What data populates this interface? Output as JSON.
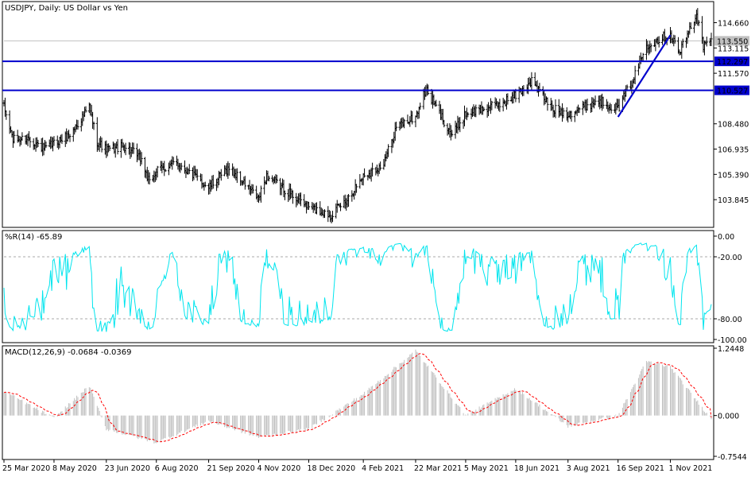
{
  "main_panel": {
    "symbol_title": "USDJPY, Daily:  US Dollar vs Yen",
    "price_ticks": [
      "114.660",
      "113.115",
      "111.570",
      "108.480",
      "106.935",
      "105.390",
      "103.845"
    ],
    "current_price_tag": "113.550",
    "hline_tags": [
      "112.297",
      "110.527"
    ]
  },
  "wpr_panel": {
    "title": "%R(14) -65.89",
    "ticks": [
      "0.00",
      "-20.00",
      "-80.00",
      "-100.00"
    ]
  },
  "macd_panel": {
    "title": "MACD(12,26,9) -0.0684 -0.0369",
    "ticks": [
      "1.2448",
      "0.000",
      "-0.7544"
    ]
  },
  "time_axis": {
    "labels": [
      "25 Mar 2020",
      "8 May 2020",
      "23 Jun 2020",
      "6 Aug 2020",
      "21 Sep 2020",
      "4 Nov 2020",
      "18 Dec 2020",
      "4 Feb 2021",
      "22 Mar 2021",
      "5 May 2021",
      "18 Jun 2021",
      "3 Aug 2021",
      "16 Sep 2021",
      "1 Nov 2021"
    ]
  },
  "colors": {
    "bars": "#000000",
    "hlines": "#0000CD",
    "trendline": "#0000CD",
    "wpr_line": "#00E5EE",
    "macd_hist": "#C0C0C0",
    "macd_signal": "#FF0000",
    "grid_dash": "#A9A9A9",
    "price_tag_bg": "#0000CD",
    "current_tag_bg": "#C0C0C0"
  },
  "chart_data": [
    {
      "type": "line",
      "name": "USDJPY Daily OHLC bars",
      "x_labels": [
        "25 Mar 2020",
        "8 May 2020",
        "23 Jun 2020",
        "6 Aug 2020",
        "21 Sep 2020",
        "4 Nov 2020",
        "18 Dec 2020",
        "4 Feb 2021",
        "22 Mar 2021",
        "5 May 2021",
        "18 Jun 2021",
        "3 Aug 2021",
        "16 Sep 2021",
        "1 Nov 2021"
      ],
      "close_keypoints": [
        [
          "25 Mar 2020",
          109.5
        ],
        [
          "2 Apr 2020",
          107.5
        ],
        [
          "16 Apr 2020",
          107.6
        ],
        [
          "30 Apr 2020",
          106.9
        ],
        [
          "8 May 2020",
          107.3
        ],
        [
          "22 May 2020",
          107.8
        ],
        [
          "8 Jun 2020",
          109.5
        ],
        [
          "15 Jun 2020",
          107.4
        ],
        [
          "23 Jun 2020",
          106.9
        ],
        [
          "10 Jul 2020",
          107.1
        ],
        [
          "24 Jul 2020",
          106.3
        ],
        [
          "31 Jul 2020",
          104.8
        ],
        [
          "6 Aug 2020",
          105.6
        ],
        [
          "24 Aug 2020",
          106.1
        ],
        [
          "21 Sep 2020",
          104.6
        ],
        [
          "9 Oct 2020",
          105.8
        ],
        [
          "4 Nov 2020",
          103.9
        ],
        [
          "11 Nov 2020",
          105.3
        ],
        [
          "18 Dec 2020",
          103.4
        ],
        [
          "6 Jan 2021",
          102.9
        ],
        [
          "20 Jan 2021",
          103.8
        ],
        [
          "4 Feb 2021",
          105.3
        ],
        [
          "22 Feb 2021",
          106.0
        ],
        [
          "5 Mar 2021",
          108.3
        ],
        [
          "22 Mar 2021",
          108.9
        ],
        [
          "31 Mar 2021",
          110.6
        ],
        [
          "23 Apr 2021",
          107.8
        ],
        [
          "5 May 2021",
          109.1
        ],
        [
          "1 Jun 2021",
          109.6
        ],
        [
          "18 Jun 2021",
          110.2
        ],
        [
          "2 Jul 2021",
          111.1
        ],
        [
          "20 Jul 2021",
          109.4
        ],
        [
          "3 Aug 2021",
          109.1
        ],
        [
          "30 Aug 2021",
          109.9
        ],
        [
          "16 Sep 2021",
          109.4
        ],
        [
          "30 Sep 2021",
          111.3
        ],
        [
          "11 Oct 2021",
          113.3
        ],
        [
          "1 Nov 2021",
          114.0
        ],
        [
          "9 Nov 2021",
          112.8
        ],
        [
          "24 Nov 2021",
          115.2
        ],
        [
          "30 Nov 2021",
          113.2
        ],
        [
          "7 Dec 2021",
          113.55
        ]
      ],
      "y_ticks": [
        103.845,
        105.39,
        106.935,
        108.48,
        111.57,
        113.115,
        114.66
      ],
      "ylim": [
        102.2,
        115.9
      ],
      "current_price": 113.55,
      "horizontal_lines": [
        112.297,
        110.527
      ],
      "trendline": {
        "from": [
          "16 Sep 2021",
          108.9
        ],
        "to": [
          "1 Nov 2021",
          113.9
        ]
      }
    },
    {
      "type": "line",
      "name": "%R(14)",
      "current_value": -65.89,
      "ylim": [
        -100,
        0
      ],
      "levels": [
        -20,
        -80
      ],
      "y_ticks": [
        0,
        -20,
        -80,
        -100
      ]
    },
    {
      "type": "bar",
      "name": "MACD(12,26,9)",
      "main_value": -0.0684,
      "signal_value": -0.0369,
      "ylim": [
        -0.7544,
        1.2448
      ],
      "y_ticks": [
        1.2448,
        0.0,
        -0.7544
      ],
      "keypoints": [
        [
          "25 Mar 2020",
          0.45
        ],
        [
          "8 May 2020",
          -0.05
        ],
        [
          "8 Jun 2020",
          0.55
        ],
        [
          "23 Jun 2020",
          -0.25
        ],
        [
          "6 Aug 2020",
          -0.5
        ],
        [
          "21 Sep 2020",
          -0.1
        ],
        [
          "4 Nov 2020",
          -0.4
        ],
        [
          "18 Dec 2020",
          -0.25
        ],
        [
          "4 Feb 2021",
          0.4
        ],
        [
          "22 Mar 2021",
          1.2
        ],
        [
          "5 May 2021",
          0.0
        ],
        [
          "18 Jun 2021",
          0.5
        ],
        [
          "3 Aug 2021",
          -0.2
        ],
        [
          "16 Sep 2021",
          0.0
        ],
        [
          "11 Oct 2021",
          1.0
        ],
        [
          "1 Nov 2021",
          0.9
        ],
        [
          "7 Dec 2021",
          -0.0684
        ]
      ]
    }
  ]
}
